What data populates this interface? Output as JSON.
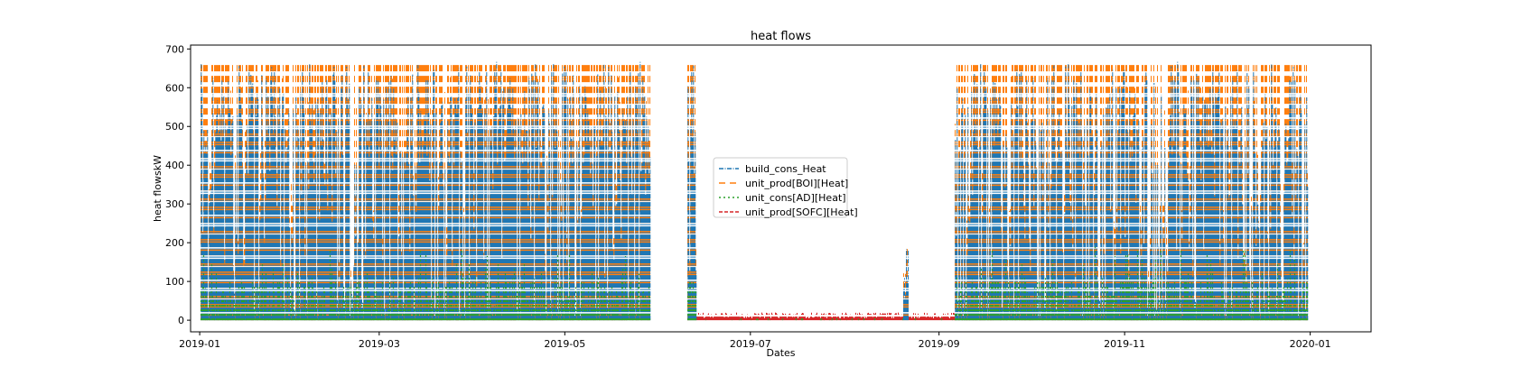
{
  "chart_data": {
    "type": "line",
    "title": "heat flows",
    "xlabel": "Dates",
    "ylabel": "heat flowskW",
    "xlim": [
      "2018-12-29",
      "2020-01-21"
    ],
    "ylim": [
      -30,
      710
    ],
    "x_ticks": [
      "2019-01-01",
      "2019-03-01",
      "2019-05-01",
      "2019-07-01",
      "2019-09-01",
      "2019-11-01",
      "2020-01-01"
    ],
    "x_tick_labels": [
      "2019-01",
      "2019-03",
      "2019-05",
      "2019-07",
      "2019-09",
      "2019-11",
      "2020-01"
    ],
    "y_ticks": [
      0,
      100,
      200,
      300,
      400,
      500,
      600,
      700
    ],
    "y_tick_labels": [
      "0",
      "100",
      "200",
      "300",
      "400",
      "500",
      "600",
      "700"
    ],
    "grid": false,
    "legend_position": "center",
    "active_periods": [
      {
        "start": "2019-01-01",
        "end": "2019-05-29",
        "peak": 660,
        "level": "high"
      },
      {
        "start": "2019-05-29",
        "end": "2019-06-10",
        "peak": 0,
        "level": "off"
      },
      {
        "start": "2019-06-10",
        "end": "2019-06-13",
        "peak": 600,
        "level": "high"
      },
      {
        "start": "2019-06-13",
        "end": "2019-08-20",
        "peak": 20,
        "level": "low"
      },
      {
        "start": "2019-08-20",
        "end": "2019-08-22",
        "peak": 195,
        "level": "spike"
      },
      {
        "start": "2019-08-22",
        "end": "2019-09-06",
        "peak": 20,
        "level": "low"
      },
      {
        "start": "2019-09-06",
        "end": "2019-12-31",
        "peak": 660,
        "level": "high"
      }
    ],
    "series": [
      {
        "name": "build_cons_Heat",
        "color": "#1f77b4",
        "style": "dashdot",
        "max": 680,
        "min": 0
      },
      {
        "name": "unit_prod[BOI][Heat]",
        "color": "#ff7f0e",
        "style": "loosely-dashed",
        "max": 660,
        "min": 0
      },
      {
        "name": "unit_cons[AD][Heat]",
        "color": "#2ca02c",
        "style": "dotted",
        "max": 200,
        "min": 0
      },
      {
        "name": "unit_prod[SOFC][Heat]",
        "color": "#d62728",
        "style": "dashed",
        "max": 20,
        "min": 0
      }
    ]
  }
}
